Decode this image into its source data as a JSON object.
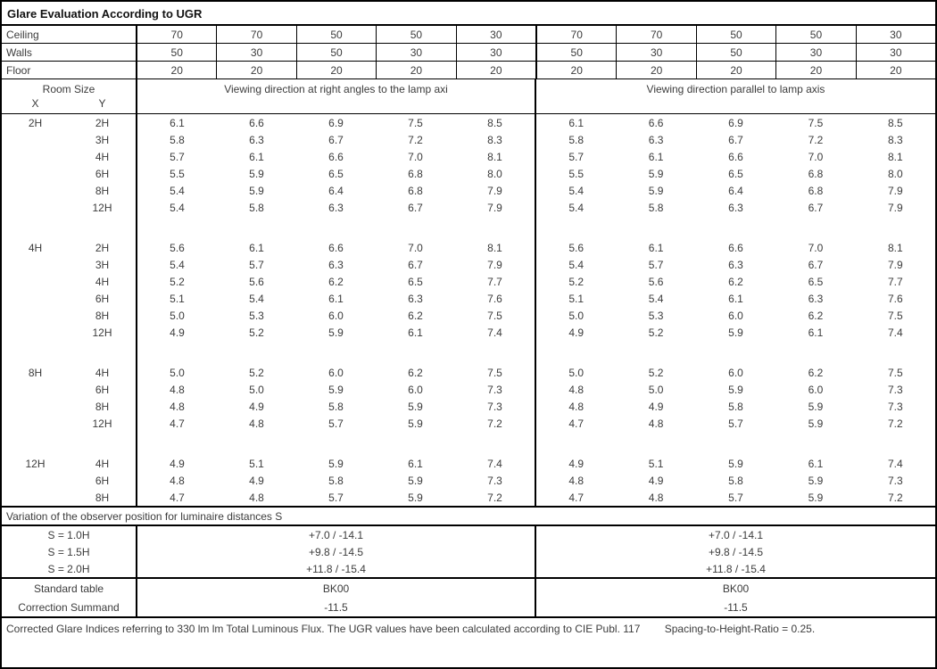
{
  "title": "Glare Evaluation According to UGR",
  "surface_rows": [
    {
      "label": "Ceiling",
      "values": [
        "70",
        "70",
        "50",
        "50",
        "30",
        "70",
        "70",
        "50",
        "50",
        "30"
      ]
    },
    {
      "label": "Walls",
      "values": [
        "50",
        "30",
        "50",
        "30",
        "30",
        "50",
        "30",
        "50",
        "30",
        "30"
      ]
    },
    {
      "label": "Floor",
      "values": [
        "20",
        "20",
        "20",
        "20",
        "20",
        "20",
        "20",
        "20",
        "20",
        "20"
      ]
    }
  ],
  "room_size": {
    "header": "Room Size",
    "x_label": "X",
    "y_label": "Y"
  },
  "section_headers": {
    "left": "Viewing direction at right angles to the lamp axi",
    "right": "Viewing direction parallel to lamp axis"
  },
  "ugr_groups": [
    {
      "x": "2H",
      "rows": [
        {
          "y": "2H",
          "left": [
            "6.1",
            "6.6",
            "6.9",
            "7.5",
            "8.5"
          ],
          "right": [
            "6.1",
            "6.6",
            "6.9",
            "7.5",
            "8.5"
          ]
        },
        {
          "y": "3H",
          "left": [
            "5.8",
            "6.3",
            "6.7",
            "7.2",
            "8.3"
          ],
          "right": [
            "5.8",
            "6.3",
            "6.7",
            "7.2",
            "8.3"
          ]
        },
        {
          "y": "4H",
          "left": [
            "5.7",
            "6.1",
            "6.6",
            "7.0",
            "8.1"
          ],
          "right": [
            "5.7",
            "6.1",
            "6.6",
            "7.0",
            "8.1"
          ]
        },
        {
          "y": "6H",
          "left": [
            "5.5",
            "5.9",
            "6.5",
            "6.8",
            "8.0"
          ],
          "right": [
            "5.5",
            "5.9",
            "6.5",
            "6.8",
            "8.0"
          ]
        },
        {
          "y": "8H",
          "left": [
            "5.4",
            "5.9",
            "6.4",
            "6.8",
            "7.9"
          ],
          "right": [
            "5.4",
            "5.9",
            "6.4",
            "6.8",
            "7.9"
          ]
        },
        {
          "y": "12H",
          "left": [
            "5.4",
            "5.8",
            "6.3",
            "6.7",
            "7.9"
          ],
          "right": [
            "5.4",
            "5.8",
            "6.3",
            "6.7",
            "7.9"
          ]
        }
      ]
    },
    {
      "x": "4H",
      "rows": [
        {
          "y": "2H",
          "left": [
            "5.6",
            "6.1",
            "6.6",
            "7.0",
            "8.1"
          ],
          "right": [
            "5.6",
            "6.1",
            "6.6",
            "7.0",
            "8.1"
          ]
        },
        {
          "y": "3H",
          "left": [
            "5.4",
            "5.7",
            "6.3",
            "6.7",
            "7.9"
          ],
          "right": [
            "5.4",
            "5.7",
            "6.3",
            "6.7",
            "7.9"
          ]
        },
        {
          "y": "4H",
          "left": [
            "5.2",
            "5.6",
            "6.2",
            "6.5",
            "7.7"
          ],
          "right": [
            "5.2",
            "5.6",
            "6.2",
            "6.5",
            "7.7"
          ]
        },
        {
          "y": "6H",
          "left": [
            "5.1",
            "5.4",
            "6.1",
            "6.3",
            "7.6"
          ],
          "right": [
            "5.1",
            "5.4",
            "6.1",
            "6.3",
            "7.6"
          ]
        },
        {
          "y": "8H",
          "left": [
            "5.0",
            "5.3",
            "6.0",
            "6.2",
            "7.5"
          ],
          "right": [
            "5.0",
            "5.3",
            "6.0",
            "6.2",
            "7.5"
          ]
        },
        {
          "y": "12H",
          "left": [
            "4.9",
            "5.2",
            "5.9",
            "6.1",
            "7.4"
          ],
          "right": [
            "4.9",
            "5.2",
            "5.9",
            "6.1",
            "7.4"
          ]
        }
      ]
    },
    {
      "x": "8H",
      "rows": [
        {
          "y": "4H",
          "left": [
            "5.0",
            "5.2",
            "6.0",
            "6.2",
            "7.5"
          ],
          "right": [
            "5.0",
            "5.2",
            "6.0",
            "6.2",
            "7.5"
          ]
        },
        {
          "y": "6H",
          "left": [
            "4.8",
            "5.0",
            "5.9",
            "6.0",
            "7.3"
          ],
          "right": [
            "4.8",
            "5.0",
            "5.9",
            "6.0",
            "7.3"
          ]
        },
        {
          "y": "8H",
          "left": [
            "4.8",
            "4.9",
            "5.8",
            "5.9",
            "7.3"
          ],
          "right": [
            "4.8",
            "4.9",
            "5.8",
            "5.9",
            "7.3"
          ]
        },
        {
          "y": "12H",
          "left": [
            "4.7",
            "4.8",
            "5.7",
            "5.9",
            "7.2"
          ],
          "right": [
            "4.7",
            "4.8",
            "5.7",
            "5.9",
            "7.2"
          ]
        }
      ]
    },
    {
      "x": "12H",
      "rows": [
        {
          "y": "4H",
          "left": [
            "4.9",
            "5.1",
            "5.9",
            "6.1",
            "7.4"
          ],
          "right": [
            "4.9",
            "5.1",
            "5.9",
            "6.1",
            "7.4"
          ]
        },
        {
          "y": "6H",
          "left": [
            "4.8",
            "4.9",
            "5.8",
            "5.9",
            "7.3"
          ],
          "right": [
            "4.8",
            "4.9",
            "5.8",
            "5.9",
            "7.3"
          ]
        },
        {
          "y": "8H",
          "left": [
            "4.7",
            "4.8",
            "5.7",
            "5.9",
            "7.2"
          ],
          "right": [
            "4.7",
            "4.8",
            "5.7",
            "5.9",
            "7.2"
          ]
        }
      ]
    }
  ],
  "variation_header": "Variation of the observer position for luminaire distances S",
  "variation_rows": [
    {
      "label": "S = 1.0H",
      "left": "+7.0 / -14.1",
      "right": "+7.0 / -14.1"
    },
    {
      "label": "S = 1.5H",
      "left": "+9.8 / -14.5",
      "right": "+9.8 / -14.5"
    },
    {
      "label": "S = 2.0H",
      "left": "+11.8 / -15.4",
      "right": "+11.8 / -15.4"
    }
  ],
  "summary_rows": [
    {
      "label": "Standard table",
      "left": "BK00",
      "right": "BK00"
    },
    {
      "label": "Correction Summand",
      "left": "-11.5",
      "right": "-11.5"
    }
  ],
  "footer": {
    "text_main": "Corrected Glare Indices referring to 330 lm lm Total Luminous Flux. The UGR values have been calculated according to CIE Publ. 117",
    "text_ratio": "Spacing-to-Height-Ratio = 0.25."
  }
}
